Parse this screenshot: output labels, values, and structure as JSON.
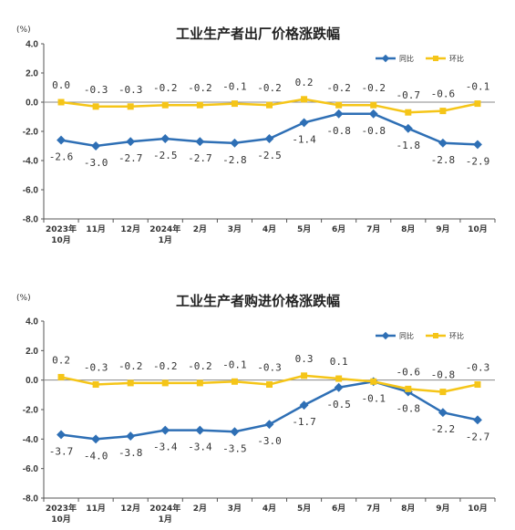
{
  "chart_data": [
    {
      "type": "line",
      "title": "工业生产者出厂价格涨跌幅",
      "unit": "(%)",
      "ylim": [
        -8.0,
        4.0
      ],
      "yticks": [
        "4.0",
        "2.0",
        "0.0",
        "-2.0",
        "-4.0",
        "-6.0",
        "-8.0"
      ],
      "categories": [
        [
          "2023年",
          "10月"
        ],
        [
          "11月"
        ],
        [
          "12月"
        ],
        [
          "2024年",
          "1月"
        ],
        [
          "2月"
        ],
        [
          "3月"
        ],
        [
          "4月"
        ],
        [
          "5月"
        ],
        [
          "6月"
        ],
        [
          "7月"
        ],
        [
          "8月"
        ],
        [
          "9月"
        ],
        [
          "10月"
        ]
      ],
      "legend_position": "top-right",
      "series": [
        {
          "name": "同比",
          "color": "#2e6fb5",
          "values": [
            -2.6,
            -3.0,
            -2.7,
            -2.5,
            -2.7,
            -2.8,
            -2.5,
            -1.4,
            -0.8,
            -0.8,
            -1.8,
            -2.8,
            -2.9
          ],
          "labels": [
            "-2.6",
            "-3.0",
            "-2.7",
            "-2.5",
            "-2.7",
            "-2.8",
            "-2.5",
            "-1.4",
            "-0.8",
            "-0.8",
            "-1.8",
            "-2.8",
            "-2.9"
          ]
        },
        {
          "name": "环比",
          "color": "#f5c518",
          "values": [
            0.0,
            -0.3,
            -0.3,
            -0.2,
            -0.2,
            -0.1,
            -0.2,
            0.2,
            -0.2,
            -0.2,
            -0.7,
            -0.6,
            -0.1
          ],
          "labels": [
            "0.0",
            "-0.3",
            "-0.3",
            "-0.2",
            "-0.2",
            "-0.1",
            "-0.2",
            "0.2",
            "-0.2",
            "-0.2",
            "-0.7",
            "-0.6",
            "-0.1"
          ]
        }
      ]
    },
    {
      "type": "line",
      "title": "工业生产者购进价格涨跌幅",
      "unit": "(%)",
      "ylim": [
        -8.0,
        4.0
      ],
      "yticks": [
        "4.0",
        "2.0",
        "0.0",
        "-2.0",
        "-4.0",
        "-6.0",
        "-8.0"
      ],
      "categories": [
        [
          "2023年",
          "10月"
        ],
        [
          "11月"
        ],
        [
          "12月"
        ],
        [
          "2024年",
          "1月"
        ],
        [
          "2月"
        ],
        [
          "3月"
        ],
        [
          "4月"
        ],
        [
          "5月"
        ],
        [
          "6月"
        ],
        [
          "7月"
        ],
        [
          "8月"
        ],
        [
          "9月"
        ],
        [
          "10月"
        ]
      ],
      "legend_position": "top-right",
      "series": [
        {
          "name": "同比",
          "color": "#2e6fb5",
          "values": [
            -3.7,
            -4.0,
            -3.8,
            -3.4,
            -3.4,
            -3.5,
            -3.0,
            -1.7,
            -0.5,
            -0.1,
            -0.8,
            -2.2,
            -2.7
          ],
          "labels": [
            "-3.7",
            "-4.0",
            "-3.8",
            "-3.4",
            "-3.4",
            "-3.5",
            "-3.0",
            "-1.7",
            "-0.5",
            "-0.1",
            "-0.8",
            "-2.2",
            "-2.7"
          ]
        },
        {
          "name": "环比",
          "color": "#f5c518",
          "values": [
            0.2,
            -0.3,
            -0.2,
            -0.2,
            -0.2,
            -0.1,
            -0.3,
            0.3,
            0.1,
            -0.1,
            -0.6,
            -0.8,
            -0.3
          ],
          "labels": [
            "0.2",
            "-0.3",
            "-0.2",
            "-0.2",
            "-0.2",
            "-0.1",
            "-0.3",
            "0.3",
            "0.1",
            "",
            "-0.6",
            "-0.8",
            "-0.3"
          ]
        }
      ]
    }
  ]
}
